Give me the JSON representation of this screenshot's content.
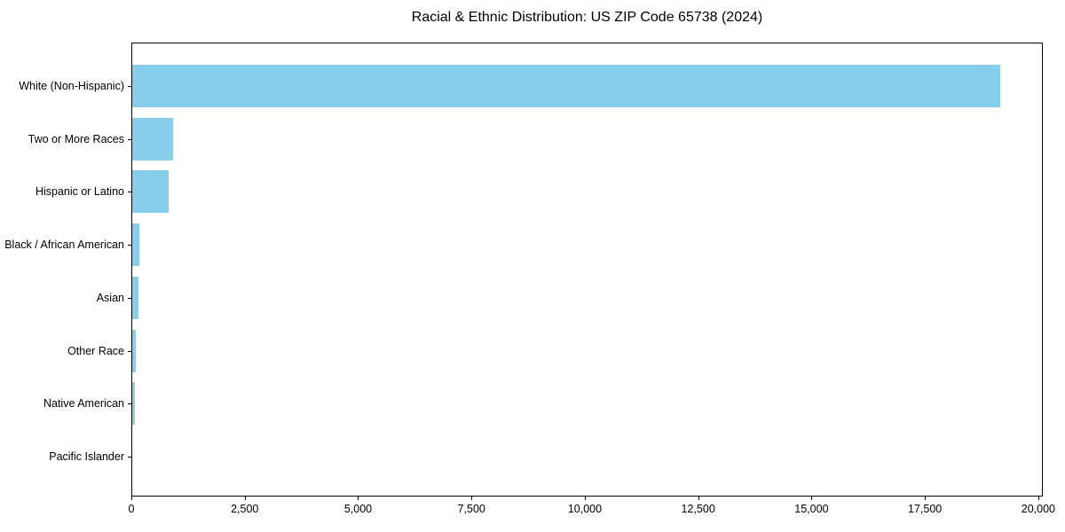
{
  "chart_data": {
    "type": "bar",
    "orientation": "horizontal",
    "title": "Racial & Ethnic Distribution: US ZIP Code 65738 (2024)",
    "categories": [
      "White (Non-Hispanic)",
      "Two or More Races",
      "Hispanic or Latino",
      "Black / African American",
      "Asian",
      "Other Race",
      "Native American",
      "Pacific Islander"
    ],
    "values": [
      19150,
      900,
      800,
      155,
      135,
      80,
      60,
      0
    ],
    "xlabel": "",
    "ylabel": "",
    "xlim": [
      0,
      20100
    ],
    "xticks": [
      0,
      2500,
      5000,
      7500,
      10000,
      12500,
      15000,
      17500,
      20000
    ],
    "xtick_labels": [
      "0",
      "2,500",
      "5,000",
      "7,500",
      "10,000",
      "12,500",
      "15,000",
      "17,500",
      "20,000"
    ],
    "bar_color": "#87CEEB",
    "axis_color": "#000000",
    "grid": false,
    "legend": null
  }
}
